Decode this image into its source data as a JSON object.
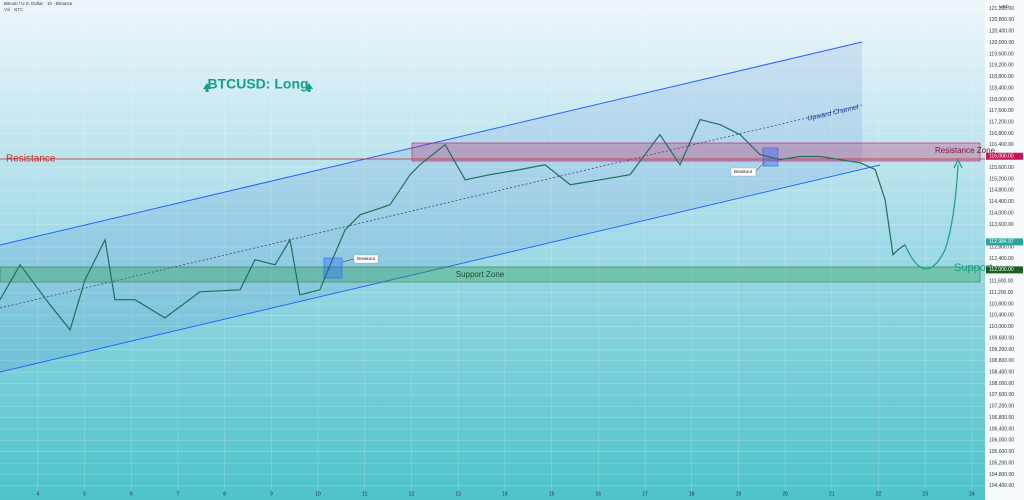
{
  "chart_data": {
    "type": "line",
    "header": "Bitcoin / U.S. Dollar · 1h · Binance",
    "subheader": "Vol · BTC",
    "currency": "USD",
    "title": "BTCUSD: Long",
    "annotations": {
      "channel": "Upward Channel",
      "resistance_zone": "Resistance Zone",
      "support_zone": "Support Zone",
      "resistance": "Resistance",
      "support": "Support",
      "breakout_1": "Breakout",
      "breakout_2": "Breakout"
    },
    "x": [
      3.19,
      3.62,
      4.26,
      4.69,
      5.01,
      5.44,
      5.65,
      6.08,
      6.72,
      7.47,
      8.33,
      8.65,
      9.08,
      9.4,
      9.61,
      10.04,
      10.26,
      10.58,
      10.9,
      11.54,
      11.97,
      12.18,
      12.72,
      13.15,
      13.68,
      14.32,
      14.86,
      15.4,
      16.04,
      16.68,
      17.32,
      17.75,
      18.18,
      18.61,
      19.04,
      19.46,
      19.89,
      20.32,
      20.75,
      21.18,
      21.61,
      21.93,
      22.14,
      22.31,
      22.42,
      22.57
    ],
    "series": [
      {
        "name": "BTCUSD",
        "color": "#1f6f5c",
        "values": [
          110950,
          112180,
          110770,
          109890,
          111650,
          113060,
          110950,
          110950,
          110310,
          111230,
          111300,
          112360,
          112180,
          113060,
          111120,
          111300,
          112180,
          113410,
          113940,
          114290,
          115350,
          115700,
          116410,
          115170,
          115350,
          115530,
          115700,
          115000,
          115170,
          115350,
          116760,
          115700,
          117290,
          117110,
          116760,
          116060,
          115880,
          115990,
          115990,
          115880,
          115770,
          115530,
          114470,
          112530,
          112710,
          112890
        ]
      }
    ],
    "price_tags": [
      {
        "value": 116000,
        "label": "116,000.00",
        "color": "#c2185b"
      },
      {
        "value": 112984.97,
        "label": "112,984.97",
        "color": "#26a69a"
      },
      {
        "value": 112000,
        "label": "112,000.00",
        "color": "#1b5e20"
      }
    ],
    "xlim": [
      3.19,
      24.28
    ],
    "xticks": [
      4,
      5,
      6,
      7,
      8,
      9,
      10,
      11,
      12,
      13,
      14,
      15,
      16,
      17,
      18,
      19,
      20,
      21,
      22,
      23,
      24
    ],
    "ylim": [
      103900,
      121500
    ],
    "yticks": [
      {
        "value": 104400,
        "label": "104,400.00"
      },
      {
        "value": 104800,
        "label": "104,800.00"
      },
      {
        "value": 105200,
        "label": "105,200.00"
      },
      {
        "value": 105600,
        "label": "105,600.00"
      },
      {
        "value": 106000,
        "label": "106,000.00"
      },
      {
        "value": 106400,
        "label": "106,400.00"
      },
      {
        "value": 106800,
        "label": "106,800.00"
      },
      {
        "value": 107200,
        "label": "107,200.00"
      },
      {
        "value": 107600,
        "label": "107,600.00"
      },
      {
        "value": 108000,
        "label": "108,000.00"
      },
      {
        "value": 108400,
        "label": "108,400.00"
      },
      {
        "value": 108800,
        "label": "108,800.00"
      },
      {
        "value": 109200,
        "label": "109,200.00"
      },
      {
        "value": 109600,
        "label": "109,600.00"
      },
      {
        "value": 110000,
        "label": "110,000.00"
      },
      {
        "value": 110400,
        "label": "110,400.00"
      },
      {
        "value": 110800,
        "label": "110,800.00"
      },
      {
        "value": 111200,
        "label": "111,200.00"
      },
      {
        "value": 111600,
        "label": "111,600.00"
      },
      {
        "value": 112400,
        "label": "112,400.00"
      },
      {
        "value": 112800,
        "label": "112,800.00"
      },
      {
        "value": 113600,
        "label": "113,600.00"
      },
      {
        "value": 114000,
        "label": "114,000.00"
      },
      {
        "value": 114400,
        "label": "114,400.00"
      },
      {
        "value": 114800,
        "label": "114,800.00"
      },
      {
        "value": 115200,
        "label": "115,200.00"
      },
      {
        "value": 115600,
        "label": "115,600.00"
      },
      {
        "value": 116400,
        "label": "116,400.00"
      },
      {
        "value": 116800,
        "label": "116,800.00"
      },
      {
        "value": 117200,
        "label": "117,200.00"
      },
      {
        "value": 117600,
        "label": "117,600.00"
      },
      {
        "value": 118000,
        "label": "118,000.00"
      },
      {
        "value": 118400,
        "label": "118,400.00"
      },
      {
        "value": 118800,
        "label": "118,800.00"
      },
      {
        "value": 119200,
        "label": "119,200.00"
      },
      {
        "value": 119600,
        "label": "119,600.00"
      },
      {
        "value": 120000,
        "label": "120,000.00"
      },
      {
        "value": 120400,
        "label": "120,400.00"
      },
      {
        "value": 120800,
        "label": "120,800.00"
      },
      {
        "value": 121200,
        "label": "121,200.00"
      }
    ]
  }
}
